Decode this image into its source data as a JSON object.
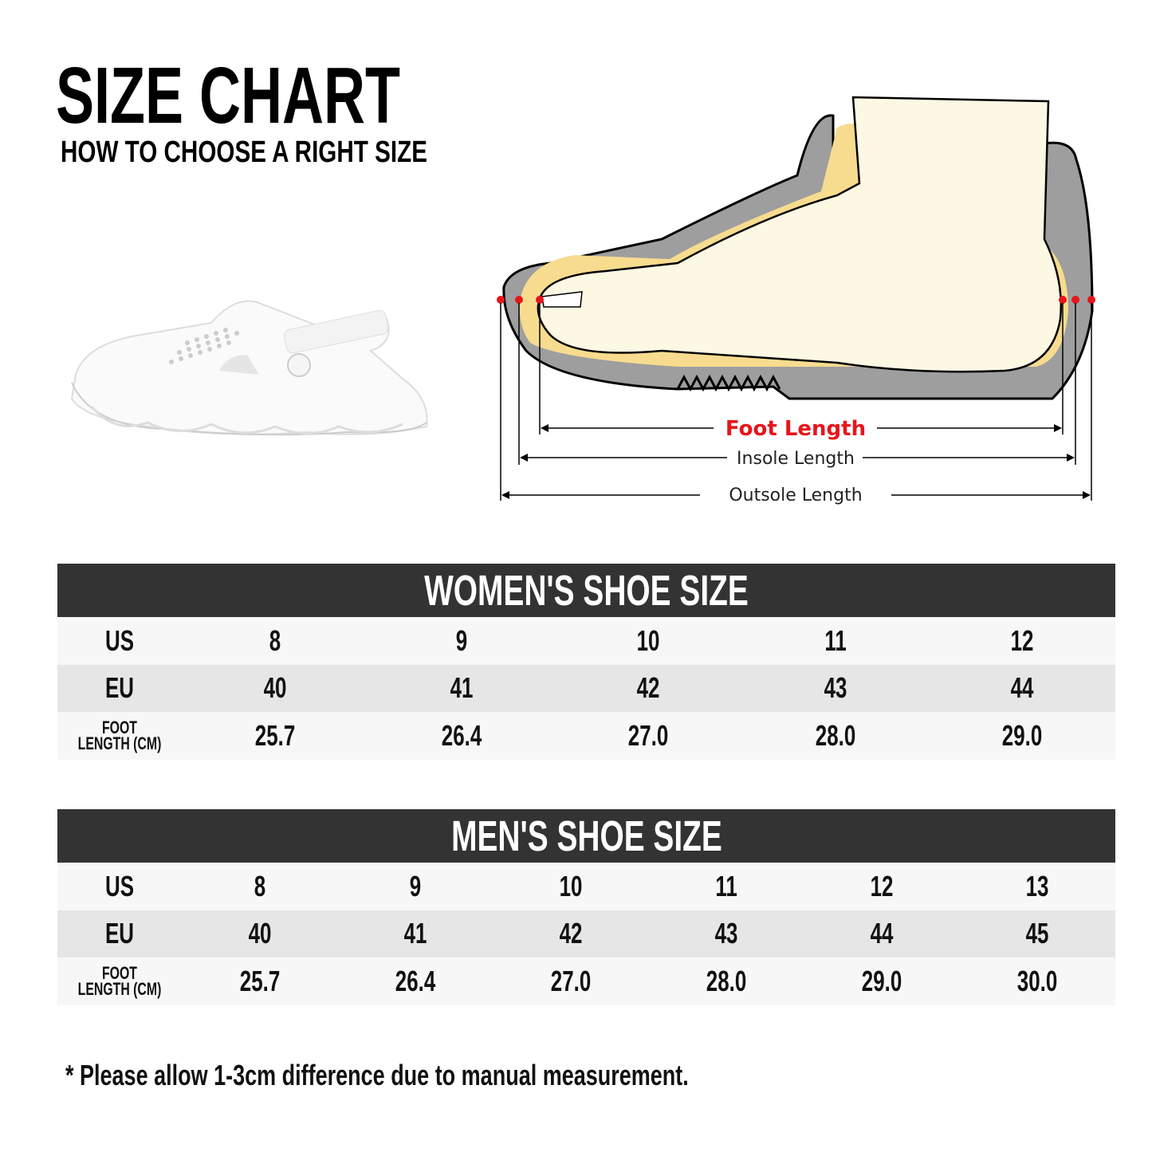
{
  "header": {
    "title": "SIZE CHART",
    "subtitle": "HOW TO CHOOSE A RIGHT SIZE"
  },
  "diagram": {
    "foot_length_label": "Foot Length",
    "insole_length_label": "Insole Length",
    "outsole_length_label": "Outsole Length",
    "colors": {
      "foot_length": "#e8141b",
      "marker": "#e8141b",
      "outsole": "#9e9e9e",
      "insole": "#f7dc8f",
      "foot": "#fdf8e3"
    }
  },
  "women": {
    "title": "WOMEN'S SHOE SIZE",
    "row_labels": [
      "US",
      "EU",
      "FOOT LENGTH (CM)"
    ],
    "us": [
      "8",
      "9",
      "10",
      "11",
      "12"
    ],
    "eu": [
      "40",
      "41",
      "42",
      "43",
      "44"
    ],
    "foot_length_cm": [
      "25.7",
      "26.4",
      "27.0",
      "28.0",
      "29.0"
    ]
  },
  "men": {
    "title": "MEN'S SHOE SIZE",
    "row_labels": [
      "US",
      "EU",
      "FOOT LENGTH (CM)"
    ],
    "us": [
      "8",
      "9",
      "10",
      "11",
      "12",
      "13"
    ],
    "eu": [
      "40",
      "41",
      "42",
      "43",
      "44",
      "45"
    ],
    "foot_length_cm": [
      "25.7",
      "26.4",
      "27.0",
      "28.0",
      "29.0",
      "30.0"
    ]
  },
  "footnote": "* Please allow 1-3cm difference due to manual measurement."
}
